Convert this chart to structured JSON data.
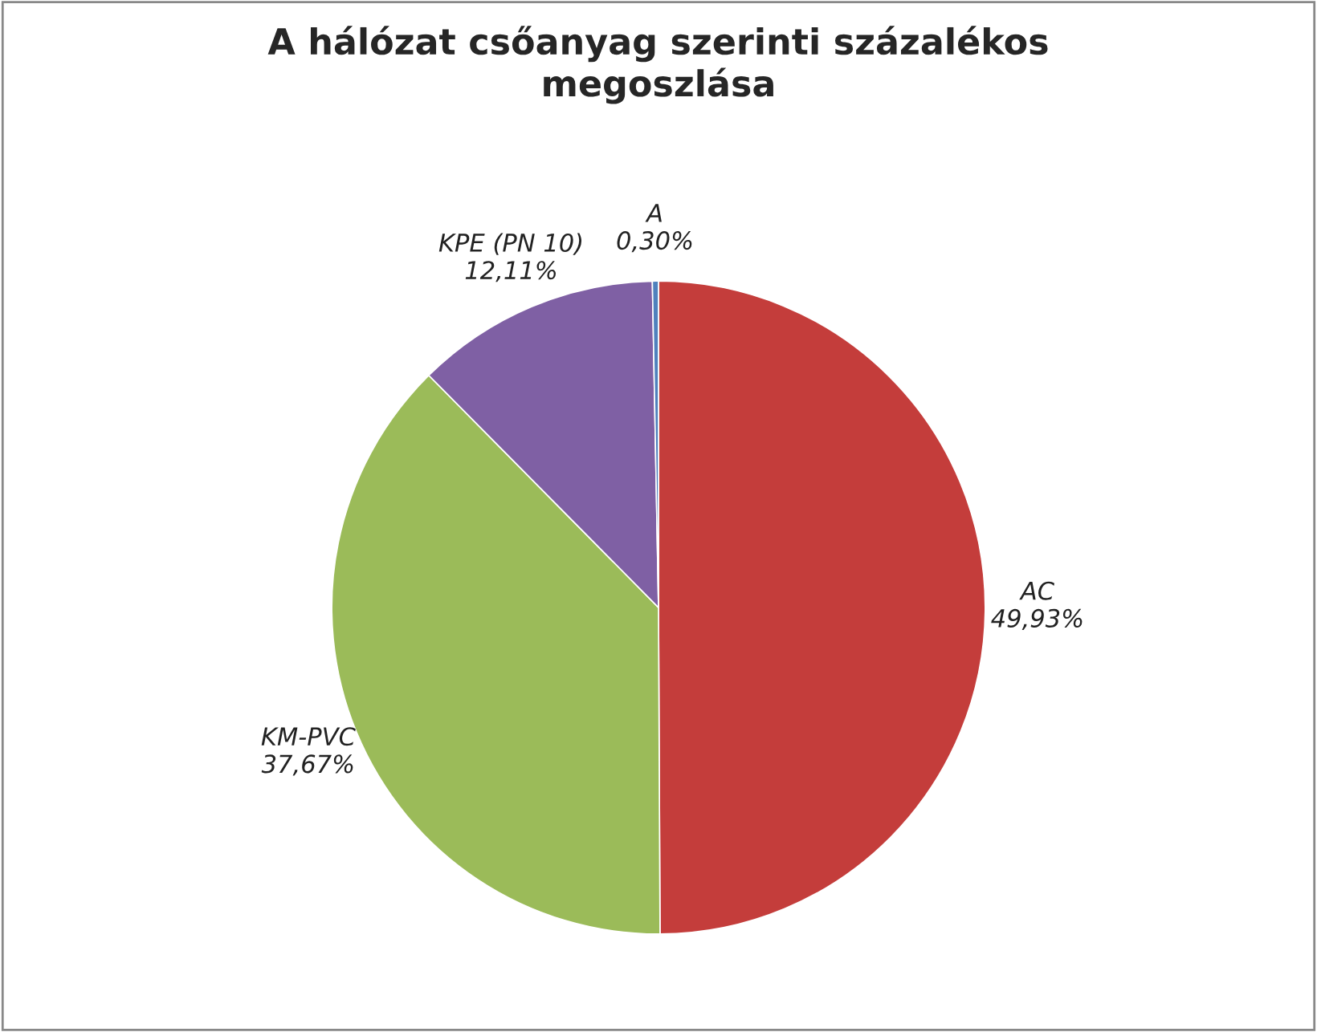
{
  "chart_data": {
    "type": "pie",
    "title": "A hálózat csőanyag szerinti százalékos megoszlása",
    "categories": [
      "AC",
      "KM-PVC",
      "KPE (PN 10)",
      "A"
    ],
    "values": [
      49.93,
      37.67,
      12.11,
      0.3
    ],
    "value_labels": [
      "49,93%",
      "37,67%",
      "12,11%",
      "0,30%"
    ],
    "colors": [
      "#c43d3b",
      "#9bbb59",
      "#7f60a4",
      "#4f81bd"
    ]
  }
}
